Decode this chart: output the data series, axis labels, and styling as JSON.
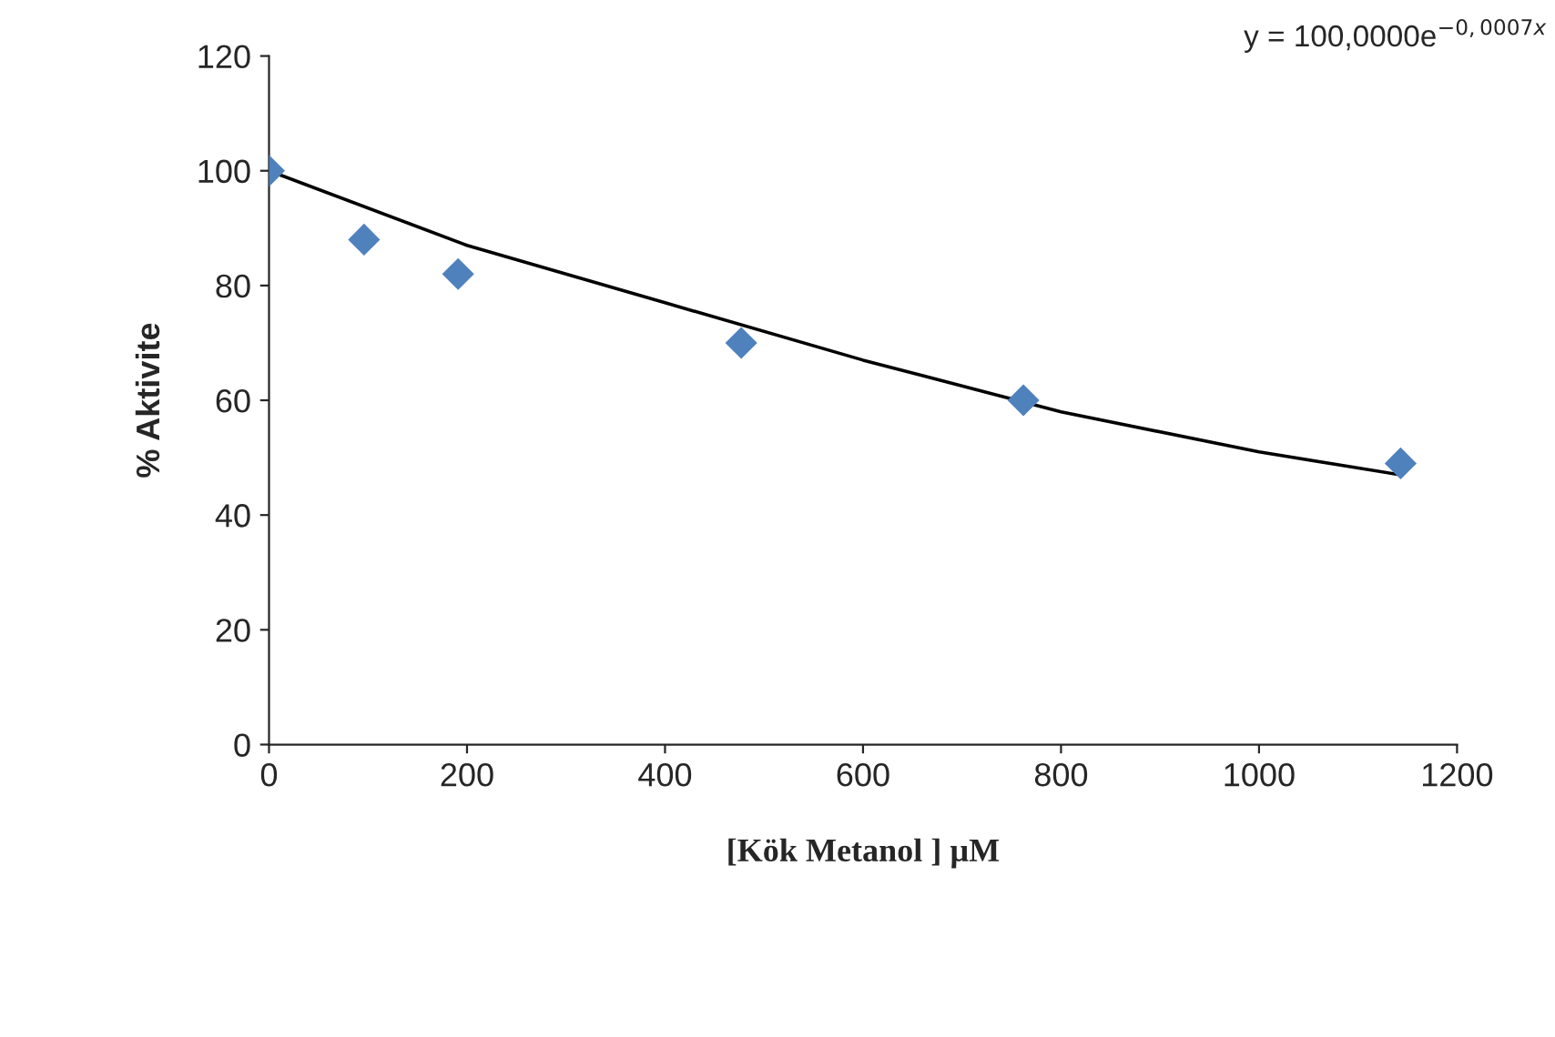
{
  "chart_data": {
    "type": "scatter",
    "xlabel": "[Kök Metanol ] µM",
    "ylabel": "% Aktivite",
    "annotations": [
      "y = 100,0000e$^{−0,0007x}$"
    ],
    "xlim": [
      0,
      1200
    ],
    "xticks": [
      0,
      200,
      400,
      600,
      800,
      1000,
      1200
    ],
    "ylim": [
      0,
      120
    ],
    "yticks": [
      0,
      20,
      40,
      60,
      80,
      100,
      120
    ],
    "grid": false,
    "legend": false,
    "series": [
      {
        "color": "#4f81bd",
        "marker": "diamond",
        "x": [
          0,
          96,
          191,
          477,
          762,
          1143
        ],
        "values": [
          100,
          88,
          82,
          70,
          60,
          49
        ]
      },
      {
        "type": "line",
        "color": "#000000",
        "line_style": "solid",
        "x": [
          0,
          200,
          400,
          600,
          800,
          1000,
          1143
        ],
        "values": [
          100,
          87,
          77,
          67,
          58,
          51,
          47
        ]
      }
    ]
  }
}
